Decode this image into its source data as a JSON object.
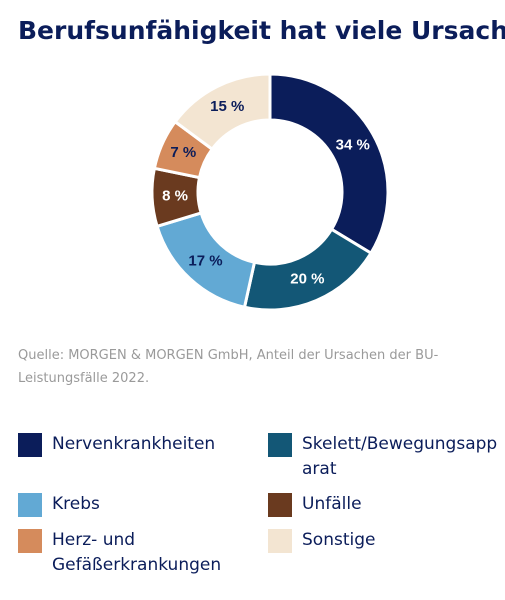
{
  "chart_data": {
    "type": "pie",
    "donut": true,
    "title": "Berufsunfähigkeit hat viele Ursachen",
    "categories": [
      "Nervenkrankheiten",
      "Skelett/Bewegungsapparat",
      "Krebs",
      "Unfälle",
      "Herz- und Gefäßerkrankungen",
      "Sonstige"
    ],
    "values": [
      34,
      20,
      17,
      8,
      7,
      15
    ],
    "value_labels": [
      "34 %",
      "20 %",
      "17 %",
      "8 %",
      "7 %",
      "15 %"
    ],
    "colors": [
      "#0b1d5a",
      "#135776",
      "#62a9d4",
      "#6a3a1f",
      "#d58b5c",
      "#f3e5d2"
    ],
    "source": "Quelle: MORGEN & MORGEN GmbH, Anteil der Ursachen der BU-Leistungsfälle 2022."
  }
}
